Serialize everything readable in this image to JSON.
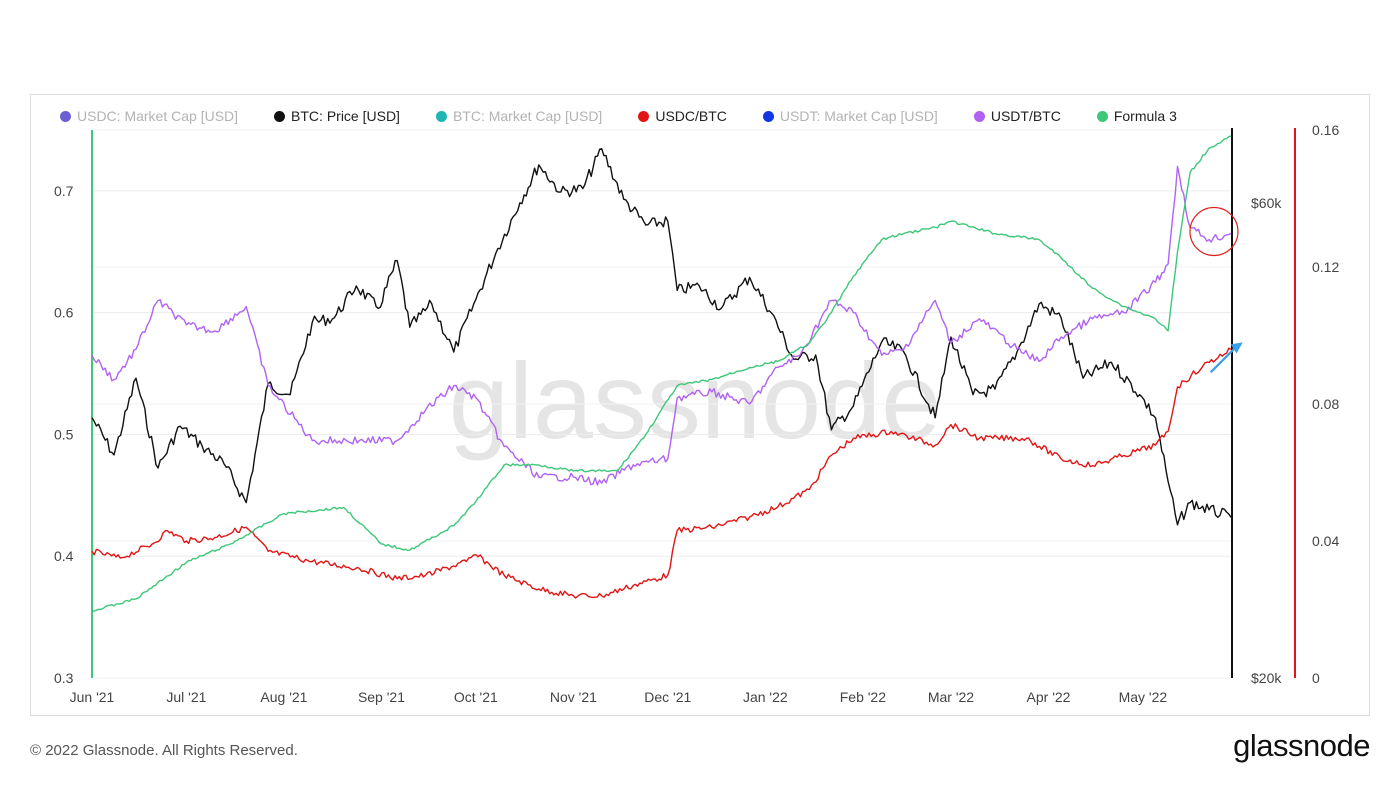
{
  "legend": [
    {
      "label": "USDC: Market Cap [USD]",
      "color": "#6b5fd3",
      "muted": true
    },
    {
      "label": "BTC: Price [USD]",
      "color": "#111111",
      "muted": false
    },
    {
      "label": "BTC: Market Cap [USD]",
      "color": "#1fb5b0",
      "muted": true
    },
    {
      "label": "USDC/BTC",
      "color": "#e11515",
      "muted": false
    },
    {
      "label": "USDT: Market Cap [USD]",
      "color": "#1237e6",
      "muted": true
    },
    {
      "label": "USDT/BTC",
      "color": "#b062f2",
      "muted": false
    },
    {
      "label": "Formula 3",
      "color": "#3ec77a",
      "muted": false
    }
  ],
  "watermark": "glassnode",
  "footer": {
    "copyright": "© 2022 Glassnode. All Rights Reserved.",
    "logo": "glassnode"
  },
  "chart_data": {
    "type": "line",
    "x_axis": {
      "type": "date",
      "range": [
        "2021-06-01",
        "2022-05-29"
      ],
      "ticks": [
        {
          "date": "2021-06-01",
          "label": "Jun '21"
        },
        {
          "date": "2021-07-01",
          "label": "Jul '21"
        },
        {
          "date": "2021-08-01",
          "label": "Aug '21"
        },
        {
          "date": "2021-09-01",
          "label": "Sep '21"
        },
        {
          "date": "2021-10-01",
          "label": "Oct '21"
        },
        {
          "date": "2021-11-01",
          "label": "Nov '21"
        },
        {
          "date": "2021-12-01",
          "label": "Dec '21"
        },
        {
          "date": "2022-01-01",
          "label": "Jan '22"
        },
        {
          "date": "2022-02-01",
          "label": "Feb '22"
        },
        {
          "date": "2022-03-01",
          "label": "Mar '22"
        },
        {
          "date": "2022-04-01",
          "label": "Apr '22"
        },
        {
          "date": "2022-05-01",
          "label": "May '22"
        }
      ]
    },
    "left_axis": {
      "range": [
        0.3,
        0.75
      ],
      "ticks": [
        {
          "value": 0.3,
          "label": "0.3"
        },
        {
          "value": 0.4,
          "label": "0.4"
        },
        {
          "value": 0.5,
          "label": "0.5"
        },
        {
          "value": 0.6,
          "label": "0.6"
        },
        {
          "value": 0.7,
          "label": "0.7"
        }
      ],
      "line_color": "#3ec77a"
    },
    "price_axis": {
      "scale": "log",
      "range": [
        20000,
        71000
      ],
      "ticks": [
        {
          "value": 20000,
          "label": "$20k"
        },
        {
          "value": 60000,
          "label": "$60k"
        }
      ],
      "line_color": "#111111"
    },
    "right_axis": {
      "range": [
        0,
        0.16
      ],
      "ticks": [
        {
          "value": 0,
          "label": "0"
        },
        {
          "value": 0.04,
          "label": "0.04"
        },
        {
          "value": 0.08,
          "label": "0.08"
        },
        {
          "value": 0.12,
          "label": "0.12"
        },
        {
          "value": 0.16,
          "label": "0.16"
        }
      ],
      "line_color": "#e11515"
    },
    "grid": true,
    "legend_position": "top-left",
    "series": [
      {
        "name": "BTC: Price [USD]",
        "color": "#111111",
        "axis": "price",
        "points": [
          [
            "2021-06-01",
            36500
          ],
          [
            "2021-06-08",
            33500
          ],
          [
            "2021-06-15",
            40000
          ],
          [
            "2021-06-22",
            32500
          ],
          [
            "2021-06-29",
            35800
          ],
          [
            "2021-07-06",
            34200
          ],
          [
            "2021-07-13",
            32800
          ],
          [
            "2021-07-20",
            30000
          ],
          [
            "2021-07-27",
            39500
          ],
          [
            "2021-08-03",
            38500
          ],
          [
            "2021-08-10",
            45500
          ],
          [
            "2021-08-17",
            46000
          ],
          [
            "2021-08-24",
            49500
          ],
          [
            "2021-08-31",
            47000
          ],
          [
            "2021-09-06",
            52500
          ],
          [
            "2021-09-10",
            45000
          ],
          [
            "2021-09-17",
            47500
          ],
          [
            "2021-09-24",
            42500
          ],
          [
            "2021-10-01",
            48000
          ],
          [
            "2021-10-08",
            54000
          ],
          [
            "2021-10-15",
            60000
          ],
          [
            "2021-10-21",
            65500
          ],
          [
            "2021-10-28",
            61500
          ],
          [
            "2021-11-04",
            62000
          ],
          [
            "2021-11-10",
            68000
          ],
          [
            "2021-11-17",
            60500
          ],
          [
            "2021-11-24",
            57000
          ],
          [
            "2021-12-01",
            57500
          ],
          [
            "2021-12-04",
            49000
          ],
          [
            "2021-12-11",
            49500
          ],
          [
            "2021-12-18",
            47000
          ],
          [
            "2021-12-27",
            50500
          ],
          [
            "2022-01-03",
            46500
          ],
          [
            "2022-01-10",
            41800
          ],
          [
            "2022-01-17",
            42200
          ],
          [
            "2022-01-22",
            35500
          ],
          [
            "2022-01-29",
            37500
          ],
          [
            "2022-02-07",
            43500
          ],
          [
            "2022-02-14",
            42500
          ],
          [
            "2022-02-24",
            36500
          ],
          [
            "2022-03-01",
            44000
          ],
          [
            "2022-03-08",
            38500
          ],
          [
            "2022-03-15",
            39000
          ],
          [
            "2022-03-22",
            42500
          ],
          [
            "2022-03-29",
            47500
          ],
          [
            "2022-04-05",
            46000
          ],
          [
            "2022-04-12",
            40000
          ],
          [
            "2022-04-21",
            41500
          ],
          [
            "2022-04-30",
            38500
          ],
          [
            "2022-05-05",
            36500
          ],
          [
            "2022-05-09",
            31500
          ],
          [
            "2022-05-12",
            28500
          ],
          [
            "2022-05-16",
            30000
          ],
          [
            "2022-05-22",
            29500
          ],
          [
            "2022-05-29",
            29000
          ]
        ]
      },
      {
        "name": "USDC/BTC",
        "color": "#e11515",
        "axis": "right",
        "points": [
          [
            "2021-06-01",
            0.037
          ],
          [
            "2021-06-10",
            0.035
          ],
          [
            "2021-06-20",
            0.039
          ],
          [
            "2021-06-25",
            0.043
          ],
          [
            "2021-07-01",
            0.04
          ],
          [
            "2021-07-10",
            0.041
          ],
          [
            "2021-07-20",
            0.044
          ],
          [
            "2021-07-27",
            0.037
          ],
          [
            "2021-08-10",
            0.034
          ],
          [
            "2021-08-25",
            0.032
          ],
          [
            "2021-09-06",
            0.029
          ],
          [
            "2021-09-15",
            0.03
          ],
          [
            "2021-09-28",
            0.034
          ],
          [
            "2021-10-01",
            0.036
          ],
          [
            "2021-10-10",
            0.03
          ],
          [
            "2021-10-21",
            0.026
          ],
          [
            "2021-11-01",
            0.024
          ],
          [
            "2021-11-10",
            0.024
          ],
          [
            "2021-11-20",
            0.027
          ],
          [
            "2021-12-01",
            0.03
          ],
          [
            "2021-12-04",
            0.043
          ],
          [
            "2021-12-15",
            0.044
          ],
          [
            "2021-12-27",
            0.047
          ],
          [
            "2022-01-05",
            0.05
          ],
          [
            "2022-01-15",
            0.055
          ],
          [
            "2022-01-22",
            0.065
          ],
          [
            "2022-01-29",
            0.07
          ],
          [
            "2022-02-10",
            0.072
          ],
          [
            "2022-02-24",
            0.068
          ],
          [
            "2022-03-01",
            0.074
          ],
          [
            "2022-03-10",
            0.07
          ],
          [
            "2022-03-25",
            0.07
          ],
          [
            "2022-04-05",
            0.064
          ],
          [
            "2022-04-15",
            0.062
          ],
          [
            "2022-04-25",
            0.065
          ],
          [
            "2022-05-05",
            0.068
          ],
          [
            "2022-05-09",
            0.072
          ],
          [
            "2022-05-12",
            0.085
          ],
          [
            "2022-05-20",
            0.091
          ],
          [
            "2022-05-29",
            0.096
          ]
        ]
      },
      {
        "name": "USDT/BTC",
        "color": "#b062f2",
        "axis": "left",
        "points": [
          [
            "2021-06-01",
            0.565
          ],
          [
            "2021-06-08",
            0.545
          ],
          [
            "2021-06-15",
            0.57
          ],
          [
            "2021-06-22",
            0.61
          ],
          [
            "2021-07-01",
            0.59
          ],
          [
            "2021-07-10",
            0.585
          ],
          [
            "2021-07-20",
            0.605
          ],
          [
            "2021-07-27",
            0.54
          ],
          [
            "2021-08-10",
            0.495
          ],
          [
            "2021-08-25",
            0.495
          ],
          [
            "2021-09-06",
            0.495
          ],
          [
            "2021-09-15",
            0.52
          ],
          [
            "2021-09-24",
            0.54
          ],
          [
            "2021-10-01",
            0.53
          ],
          [
            "2021-10-10",
            0.49
          ],
          [
            "2021-10-21",
            0.465
          ],
          [
            "2021-11-01",
            0.465
          ],
          [
            "2021-11-10",
            0.46
          ],
          [
            "2021-11-20",
            0.475
          ],
          [
            "2021-12-01",
            0.48
          ],
          [
            "2021-12-04",
            0.53
          ],
          [
            "2021-12-15",
            0.535
          ],
          [
            "2021-12-27",
            0.525
          ],
          [
            "2022-01-05",
            0.555
          ],
          [
            "2022-01-12",
            0.565
          ],
          [
            "2022-01-22",
            0.61
          ],
          [
            "2022-01-29",
            0.6
          ],
          [
            "2022-02-07",
            0.565
          ],
          [
            "2022-02-14",
            0.57
          ],
          [
            "2022-02-24",
            0.61
          ],
          [
            "2022-03-01",
            0.575
          ],
          [
            "2022-03-10",
            0.595
          ],
          [
            "2022-03-22",
            0.57
          ],
          [
            "2022-03-29",
            0.56
          ],
          [
            "2022-04-05",
            0.58
          ],
          [
            "2022-04-15",
            0.595
          ],
          [
            "2022-04-25",
            0.6
          ],
          [
            "2022-05-05",
            0.625
          ],
          [
            "2022-05-09",
            0.64
          ],
          [
            "2022-05-12",
            0.72
          ],
          [
            "2022-05-16",
            0.67
          ],
          [
            "2022-05-22",
            0.66
          ],
          [
            "2022-05-29",
            0.665
          ]
        ]
      },
      {
        "name": "Formula 3",
        "color": "#3ec77a",
        "axis": "left",
        "points": [
          [
            "2021-06-01",
            0.355
          ],
          [
            "2021-06-15",
            0.365
          ],
          [
            "2021-07-01",
            0.395
          ],
          [
            "2021-07-15",
            0.41
          ],
          [
            "2021-08-01",
            0.435
          ],
          [
            "2021-08-20",
            0.44
          ],
          [
            "2021-09-01",
            0.41
          ],
          [
            "2021-09-10",
            0.405
          ],
          [
            "2021-09-24",
            0.425
          ],
          [
            "2021-10-01",
            0.445
          ],
          [
            "2021-10-10",
            0.475
          ],
          [
            "2021-10-21",
            0.475
          ],
          [
            "2021-11-01",
            0.47
          ],
          [
            "2021-11-15",
            0.47
          ],
          [
            "2021-11-24",
            0.5
          ],
          [
            "2021-12-04",
            0.54
          ],
          [
            "2021-12-15",
            0.545
          ],
          [
            "2021-12-27",
            0.555
          ],
          [
            "2022-01-05",
            0.56
          ],
          [
            "2022-01-15",
            0.575
          ],
          [
            "2022-01-22",
            0.6
          ],
          [
            "2022-01-29",
            0.63
          ],
          [
            "2022-02-07",
            0.66
          ],
          [
            "2022-02-14",
            0.665
          ],
          [
            "2022-02-24",
            0.67
          ],
          [
            "2022-03-01",
            0.675
          ],
          [
            "2022-03-15",
            0.665
          ],
          [
            "2022-03-29",
            0.66
          ],
          [
            "2022-04-05",
            0.645
          ],
          [
            "2022-04-15",
            0.62
          ],
          [
            "2022-04-25",
            0.605
          ],
          [
            "2022-05-05",
            0.595
          ],
          [
            "2022-05-09",
            0.585
          ],
          [
            "2022-05-12",
            0.65
          ],
          [
            "2022-05-16",
            0.715
          ],
          [
            "2022-05-22",
            0.735
          ],
          [
            "2022-05-29",
            0.745
          ]
        ]
      }
    ],
    "annotations": [
      {
        "type": "circle",
        "target": "USDT/BTC",
        "date": "2022-05-22",
        "value": 0.665,
        "color": "#e02020"
      },
      {
        "type": "arrow",
        "target": "USDC/BTC",
        "date": "2022-05-20",
        "value": 0.091,
        "color": "#3aa0e8"
      }
    ]
  }
}
